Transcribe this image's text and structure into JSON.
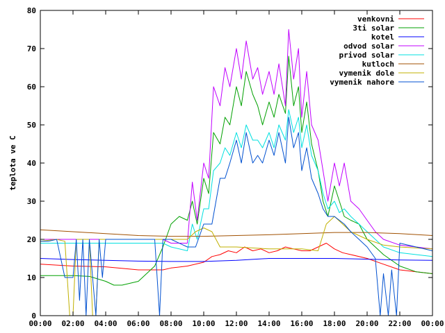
{
  "chart_data": {
    "type": "line",
    "title": "",
    "xlabel": "",
    "ylabel": "teplota ve C",
    "xlim": [
      0,
      24
    ],
    "ylim": [
      0,
      80
    ],
    "x_tick_labels": [
      "00:00",
      "02:00",
      "04:00",
      "06:00",
      "08:00",
      "10:00",
      "12:00",
      "14:00",
      "16:00",
      "18:00",
      "20:00",
      "22:00",
      "00:00"
    ],
    "y_tick_labels": [
      "0",
      "10",
      "20",
      "30",
      "40",
      "50",
      "60",
      "70",
      "80"
    ],
    "legend_position": "top-right",
    "grid": false,
    "series": [
      {
        "name": "venkovni",
        "color": "#ff0000",
        "x": [
          0,
          2,
          4,
          6,
          7.5,
          8,
          9,
          10,
          10.5,
          11,
          11.5,
          12,
          12.5,
          13,
          13.5,
          14,
          14.5,
          15,
          15.5,
          16,
          16.5,
          17,
          17.5,
          18,
          18.5,
          19,
          20,
          21,
          22,
          23,
          24
        ],
        "y": [
          13.5,
          13,
          12.8,
          12,
          12,
          12.5,
          13,
          14,
          15.5,
          16,
          17,
          16.5,
          18,
          17,
          17.5,
          16.5,
          17,
          18,
          17.5,
          17,
          17,
          18,
          19,
          17.5,
          16.5,
          16,
          15,
          13.5,
          12,
          11.5,
          11
        ]
      },
      {
        "name": "3ti solar",
        "color": "#00a000",
        "x": [
          0,
          1,
          2,
          3,
          4,
          4.5,
          5,
          6,
          7,
          7.5,
          8,
          8.5,
          9,
          9.3,
          9.6,
          10,
          10.3,
          10.6,
          11,
          11.3,
          11.6,
          12,
          12.3,
          12.6,
          13,
          13.3,
          13.6,
          14,
          14.3,
          14.6,
          15,
          15.2,
          15.5,
          15.8,
          16,
          16.3,
          16.6,
          17,
          17.3,
          17.6,
          18,
          18.3,
          18.6,
          19,
          19.5,
          20,
          21,
          22,
          23,
          24
        ],
        "y": [
          10.5,
          10.5,
          10.5,
          10.3,
          9,
          8,
          8,
          9,
          13,
          18,
          24,
          26,
          25,
          30,
          24,
          36,
          32,
          48,
          45,
          52,
          50,
          60,
          55,
          64,
          58,
          55,
          50,
          56,
          52,
          58,
          53,
          68,
          55,
          60,
          48,
          56,
          45,
          38,
          30,
          26,
          34,
          30,
          26,
          25,
          24,
          20,
          16,
          13,
          11.5,
          11
        ]
      },
      {
        "name": "kotel",
        "color": "#0000ff",
        "x": [
          0,
          2,
          4,
          6,
          8,
          10,
          12,
          14,
          16,
          18,
          20,
          22,
          24
        ],
        "y": [
          15,
          14.7,
          14.5,
          14.3,
          14.2,
          14.2,
          14.5,
          15,
          15,
          15,
          14.8,
          14.6,
          14.5
        ]
      },
      {
        "name": "odvod solar",
        "color": "#c000ff",
        "x": [
          0,
          7.5,
          8,
          9,
          9.3,
          9.6,
          10,
          10.3,
          10.6,
          11,
          11.3,
          11.6,
          12,
          12.3,
          12.6,
          13,
          13.3,
          13.6,
          14,
          14.3,
          14.6,
          15,
          15.2,
          15.5,
          15.8,
          16,
          16.3,
          16.6,
          17,
          17.3,
          17.6,
          18,
          18.3,
          18.6,
          19,
          19.5,
          20,
          20.5,
          21,
          22,
          23,
          24
        ],
        "y": [
          20,
          20,
          19,
          19,
          35,
          25,
          40,
          36,
          60,
          55,
          65,
          60,
          70,
          62,
          72,
          62,
          65,
          58,
          64,
          58,
          66,
          55,
          75,
          62,
          70,
          52,
          64,
          50,
          46,
          38,
          30,
          40,
          34,
          40,
          30,
          28,
          25,
          22,
          20,
          18.5,
          18,
          17.5
        ]
      },
      {
        "name": "privod solar",
        "color": "#00e0e0",
        "x": [
          0,
          7.5,
          8,
          9,
          9.3,
          9.6,
          10,
          10.3,
          10.6,
          11,
          11.3,
          11.6,
          12,
          12.3,
          12.6,
          13,
          13.3,
          13.6,
          14,
          14.3,
          14.6,
          15,
          15.2,
          15.5,
          15.8,
          16,
          16.3,
          16.6,
          17,
          17.3,
          17.6,
          18,
          18.3,
          18.6,
          19,
          19.5,
          20,
          20.5,
          21,
          22,
          23,
          24
        ],
        "y": [
          19,
          19,
          18,
          17,
          24,
          20,
          28,
          28,
          38,
          40,
          44,
          42,
          48,
          44,
          50,
          46,
          46,
          44,
          48,
          44,
          50,
          46,
          54,
          48,
          52,
          44,
          50,
          42,
          38,
          32,
          28,
          30,
          27,
          28,
          26,
          24,
          22,
          20,
          18,
          16.5,
          16,
          15.5
        ]
      },
      {
        "name": "kutloch",
        "color": "#a05000",
        "x": [
          0,
          2,
          4,
          6,
          8,
          10,
          12,
          14,
          16,
          18,
          20,
          22,
          24
        ],
        "y": [
          22.5,
          22,
          21.5,
          21,
          20.8,
          20.8,
          21,
          21.2,
          21.5,
          21.8,
          21.8,
          21.5,
          21
        ]
      },
      {
        "name": "vymenik dole",
        "color": "#c0b000",
        "x": [
          0,
          1,
          1.5,
          1.8,
          2,
          2.2,
          2.6,
          3,
          3.2,
          3.4,
          3.6,
          4,
          4.5,
          5,
          6,
          7,
          7.5,
          8,
          8.5,
          9,
          9.5,
          10,
          10.5,
          11,
          12,
          14,
          16,
          17,
          17.5,
          18,
          18.5,
          19,
          20,
          21,
          22,
          24
        ],
        "y": [
          19.5,
          20,
          19.5,
          0,
          0,
          20,
          20,
          20,
          0,
          0,
          20,
          20,
          20,
          20,
          20,
          20,
          20,
          20,
          20,
          20,
          22,
          23,
          22,
          18,
          18,
          17.5,
          17.5,
          17,
          24,
          26,
          24,
          22,
          20,
          18.5,
          18,
          17.5
        ]
      },
      {
        "name": "vymenik nahore",
        "color": "#0050d0",
        "x": [
          0,
          0.5,
          1,
          1.5,
          2,
          2.2,
          2.4,
          2.6,
          2.8,
          3,
          3.2,
          3.4,
          3.6,
          3.8,
          4,
          5,
          6,
          7,
          7.3,
          7.5,
          7.7,
          8,
          9,
          9.5,
          10,
          10.5,
          11,
          11.3,
          11.6,
          12,
          12.3,
          12.6,
          13,
          13.3,
          13.6,
          14,
          14.3,
          14.6,
          15,
          15.2,
          15.5,
          15.8,
          16,
          16.3,
          16.6,
          17,
          17.3,
          17.6,
          18,
          18.3,
          18.6,
          19,
          19.5,
          20,
          20.5,
          20.8,
          21,
          21.3,
          21.5,
          21.8,
          22,
          23,
          24
        ],
        "y": [
          19.5,
          19.5,
          20,
          10,
          10,
          20,
          4,
          20,
          0,
          20,
          10,
          0,
          20,
          10,
          20,
          20,
          20,
          20,
          0,
          20,
          20,
          20,
          18,
          18,
          24,
          24,
          36,
          36,
          40,
          46,
          40,
          48,
          40,
          42,
          40,
          46,
          42,
          48,
          40,
          52,
          44,
          48,
          38,
          44,
          36,
          32,
          28,
          26,
          26,
          25,
          24,
          22,
          20,
          18,
          15,
          0,
          11,
          0,
          12,
          0,
          19,
          18,
          17
        ]
      }
    ]
  }
}
